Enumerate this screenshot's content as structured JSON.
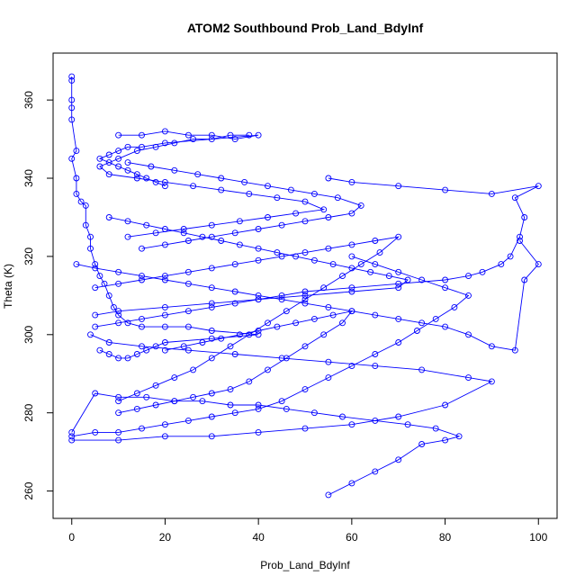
{
  "chart_data": {
    "type": "line",
    "title": "ATOM2 Southbound Prob_Land_BdyInf",
    "xlabel": "Prob_Land_BdyInf",
    "ylabel": "Theta (K)",
    "xlim": [
      -4,
      104
    ],
    "ylim": [
      253,
      372
    ],
    "x_ticks": [
      "0",
      "20",
      "40",
      "60",
      "80",
      "100"
    ],
    "y_ticks": [
      "260",
      "280",
      "300",
      "320",
      "340",
      "360"
    ],
    "x_tick_values": [
      0,
      20,
      40,
      60,
      80,
      100
    ],
    "y_tick_values": [
      260,
      280,
      300,
      320,
      340,
      360
    ],
    "grid": false,
    "legend": "none",
    "series_color": "#0000ff",
    "marker": "open-circle",
    "series": [
      {
        "x": [
          0,
          0,
          0,
          0,
          0,
          1,
          0,
          1,
          1,
          2,
          3,
          3,
          4,
          4,
          5,
          6,
          7,
          8,
          9,
          10,
          12,
          15,
          20,
          25,
          30,
          40,
          30,
          20,
          18,
          16,
          14,
          12,
          10,
          8,
          6
        ],
        "y": [
          366,
          365,
          360,
          358,
          355,
          347,
          345,
          340,
          336,
          334,
          333,
          328,
          325,
          322,
          318,
          315,
          313,
          310,
          307,
          305,
          303,
          302,
          302,
          302,
          301,
          300,
          299,
          298,
          297,
          296,
          295,
          294,
          294,
          295,
          296
        ]
      },
      {
        "x": [
          10,
          15,
          20,
          25,
          30,
          35,
          40,
          20,
          15,
          12,
          10,
          8,
          6,
          8,
          10,
          12,
          14,
          16,
          18,
          20
        ],
        "y": [
          351,
          351,
          352,
          351,
          351,
          350,
          351,
          349,
          348,
          348,
          347,
          346,
          345,
          344,
          343,
          342,
          341,
          340,
          339,
          338
        ]
      },
      {
        "x": [
          55,
          60,
          70,
          80,
          90,
          100,
          95,
          97,
          96,
          94,
          92,
          88,
          85,
          80,
          70,
          60,
          50,
          45,
          40,
          35,
          30,
          25,
          20,
          15,
          10,
          5
        ],
        "y": [
          340,
          339,
          338,
          337,
          336,
          338,
          335,
          330,
          325,
          320,
          318,
          316,
          315,
          314,
          313,
          312,
          311,
          310,
          309,
          308,
          307,
          306,
          305,
          304,
          303,
          302
        ]
      },
      {
        "x": [
          96,
          100,
          97,
          95,
          90,
          85,
          80,
          75,
          70,
          65,
          60,
          55,
          50,
          45,
          40,
          35,
          30,
          25,
          20,
          15,
          10,
          5,
          1
        ],
        "y": [
          324,
          318,
          314,
          296,
          297,
          300,
          302,
          303,
          304,
          305,
          306,
          307,
          308,
          309,
          310,
          311,
          312,
          313,
          314,
          315,
          316,
          317,
          318
        ]
      },
      {
        "x": [
          60,
          65,
          70,
          75,
          80,
          85,
          82,
          78,
          74,
          70,
          65,
          60,
          55,
          50,
          45,
          40,
          35,
          30,
          25,
          20,
          15,
          10,
          5,
          0
        ],
        "y": [
          320,
          318,
          316,
          314,
          312,
          310,
          307,
          304,
          301,
          298,
          295,
          292,
          289,
          286,
          283,
          281,
          280,
          279,
          278,
          277,
          276,
          275,
          275,
          274
        ]
      },
      {
        "x": [
          55,
          60,
          65,
          70,
          75,
          80,
          83,
          78,
          72,
          65,
          58,
          52,
          46,
          40,
          34,
          28,
          22,
          16,
          10,
          5,
          0
        ],
        "y": [
          259,
          262,
          265,
          268,
          272,
          273,
          274,
          276,
          277,
          278,
          279,
          280,
          281,
          282,
          282,
          283,
          283,
          284,
          284,
          285,
          275
        ]
      },
      {
        "x": [
          0,
          10,
          20,
          30,
          40,
          50,
          60,
          70,
          80,
          90,
          85,
          75,
          65,
          55,
          45,
          35,
          25,
          15,
          8,
          4
        ],
        "y": [
          273,
          273,
          274,
          274,
          275,
          276,
          277,
          279,
          282,
          288,
          289,
          291,
          292,
          293,
          294,
          295,
          296,
          297,
          298,
          300
        ]
      },
      {
        "x": [
          8,
          12,
          16,
          20,
          24,
          28,
          32,
          36,
          40,
          44,
          48,
          52,
          56,
          60,
          64,
          68,
          72,
          70,
          60,
          50,
          40,
          30,
          20,
          10,
          5
        ],
        "y": [
          330,
          329,
          328,
          327,
          326,
          325,
          324,
          323,
          322,
          321,
          320,
          319,
          318,
          317,
          316,
          315,
          314,
          312,
          311,
          310,
          309,
          308,
          307,
          306,
          305
        ]
      },
      {
        "x": [
          12,
          18,
          24,
          30,
          36,
          42,
          48,
          54,
          50,
          44,
          38,
          32,
          26,
          20,
          14,
          8,
          6,
          10,
          14,
          18,
          22,
          26,
          30,
          34,
          38
        ],
        "y": [
          325,
          326,
          327,
          328,
          329,
          330,
          331,
          332,
          334,
          335,
          336,
          337,
          338,
          339,
          340,
          341,
          343,
          345,
          347,
          348,
          349,
          350,
          350,
          351,
          351
        ]
      },
      {
        "x": [
          20,
          24,
          28,
          32,
          36,
          40,
          44,
          48,
          52,
          56,
          60,
          58,
          54,
          50,
          46,
          42,
          38,
          34,
          30,
          26,
          22,
          18,
          14,
          10
        ],
        "y": [
          296,
          297,
          298,
          299,
          300,
          301,
          302,
          303,
          304,
          305,
          306,
          303,
          300,
          297,
          294,
          291,
          288,
          286,
          285,
          284,
          283,
          282,
          281,
          280
        ]
      },
      {
        "x": [
          15,
          20,
          25,
          30,
          35,
          40,
          45,
          50,
          55,
          60,
          62,
          57,
          52,
          47,
          42,
          37,
          32,
          27,
          22,
          17,
          12
        ],
        "y": [
          322,
          323,
          324,
          325,
          326,
          327,
          328,
          329,
          330,
          331,
          333,
          335,
          336,
          337,
          338,
          339,
          340,
          341,
          342,
          343,
          344
        ]
      },
      {
        "x": [
          5,
          10,
          15,
          20,
          25,
          30,
          35,
          40,
          45,
          50,
          55,
          60,
          65,
          70,
          66,
          62,
          58,
          54,
          50,
          46,
          42,
          38,
          34,
          30,
          26,
          22,
          18,
          14,
          10
        ],
        "y": [
          312,
          313,
          314,
          315,
          316,
          317,
          318,
          319,
          320,
          321,
          322,
          323,
          324,
          325,
          321,
          318,
          315,
          312,
          309,
          306,
          303,
          300,
          297,
          294,
          291,
          289,
          287,
          285,
          283
        ]
      }
    ]
  }
}
